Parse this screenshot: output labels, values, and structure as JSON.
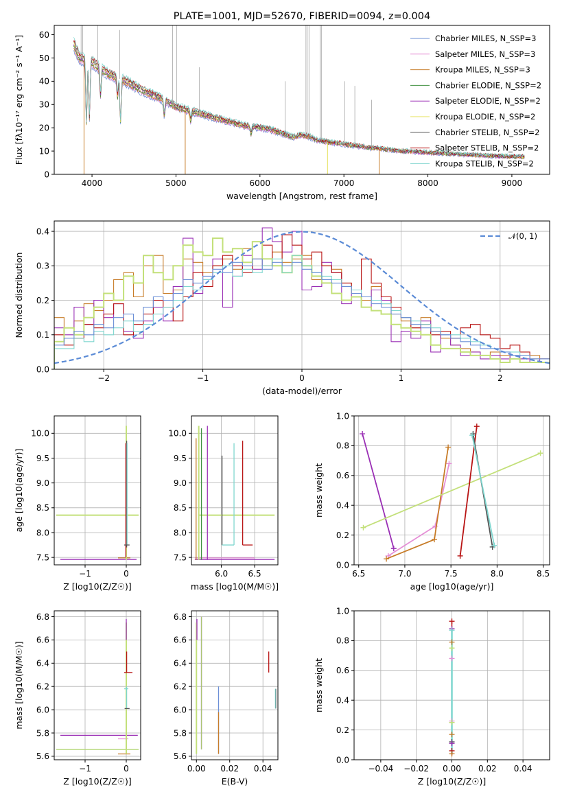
{
  "colors": {
    "c0": "#6b8fd6",
    "c1": "#e58fd6",
    "c2": "#c77c28",
    "c3": "#3f8f3f",
    "c4": "#9a2fb5",
    "c5": "#e6e05a",
    "c6": "#555555",
    "c7": "#b81414",
    "c8": "#7fd6cf",
    "gauss": "#5b8bd6",
    "hist_orange": "#e07b2b",
    "hist_lime": "#c3e07a"
  },
  "chart_data": [
    {
      "id": "spectrum",
      "type": "line",
      "title": "PLATE=1001, MJD=52670, FIBERID=0094, z=0.004",
      "xlabel": "wavelength [Angstrom, rest frame]",
      "ylabel": "Flux [fλ10⁻¹⁷ erg cm⁻² s⁻¹ A⁻¹]",
      "xlim": [
        3550,
        9450
      ],
      "ylim": [
        0,
        64
      ],
      "xticks": [
        "4000",
        "5000",
        "6000",
        "7000",
        "8000",
        "9000"
      ],
      "yticks": [
        "0",
        "10",
        "20",
        "30",
        "40",
        "50",
        "60"
      ],
      "continuum": {
        "x": [
          3780,
          3850,
          4000,
          4200,
          4400,
          4600,
          4800,
          5000,
          5200,
          5500,
          5800,
          6100,
          6400,
          6500,
          6600,
          6700,
          7000,
          7300,
          7700,
          8200,
          8700,
          9150
        ],
        "y": [
          56,
          50,
          48,
          43,
          40,
          36,
          33,
          29,
          27,
          24,
          21,
          19.5,
          16,
          17,
          16,
          14.5,
          13,
          11.5,
          10,
          9,
          8,
          7.5
        ]
      },
      "grid": false,
      "legend_position": "upper-right",
      "legend": [
        "Chabrier MILES, N_SSP=3",
        "Salpeter MILES, N_SSP=3",
        "Kroupa MILES, N_SSP=3",
        "Chabrier ELODIE, N_SSP=2",
        "Salpeter ELODIE, N_SSP=2",
        "Kroupa ELODIE, N_SSP=2",
        "Chabrier STELIB, N_SSP=2",
        "Salpeter STELIB, N_SSP=2",
        "Kroupa STELIB, N_SSP=2"
      ]
    },
    {
      "id": "residuals",
      "type": "line",
      "xlabel": "(data-model)/error",
      "ylabel": "Normed distribution",
      "xlim": [
        -2.5,
        2.5
      ],
      "ylim": [
        0,
        0.43
      ],
      "xticks": [
        "−2",
        "−1",
        "0",
        "1",
        "2"
      ],
      "yticks": [
        "0.0",
        "0.1",
        "0.2",
        "0.3",
        "0.4"
      ],
      "grid": true,
      "legend": [
        "𝒩(0, 1)"
      ],
      "hist_bins": [
        -2.5,
        2.5,
        50
      ],
      "series": [
        {
          "color": "c2",
          "values": [
            0.15,
            0.12,
            0.14,
            0.19,
            0.17,
            0.2,
            0.26,
            0.28,
            0.21,
            0.3,
            0.33,
            0.22,
            0.23,
            0.32,
            0.31,
            0.28,
            0.3,
            0.32,
            0.29,
            0.35,
            0.32,
            0.3,
            0.34,
            0.31,
            0.32,
            0.33,
            0.26,
            0.3,
            0.29,
            0.25,
            0.22,
            0.2,
            0.24,
            0.19,
            0.16,
            0.14,
            0.12,
            0.15,
            0.11,
            0.09,
            0.07,
            0.06,
            0.05,
            0.04,
            0.05,
            0.04,
            0.03,
            0.03,
            0.04,
            0.03
          ]
        },
        {
          "color": "c4",
          "values": [
            0.12,
            0.1,
            0.18,
            0.13,
            0.2,
            0.15,
            0.19,
            0.11,
            0.09,
            0.14,
            0.18,
            0.14,
            0.24,
            0.38,
            0.22,
            0.26,
            0.32,
            0.18,
            0.27,
            0.33,
            0.29,
            0.41,
            0.37,
            0.34,
            0.4,
            0.23,
            0.24,
            0.31,
            0.28,
            0.19,
            0.22,
            0.18,
            0.23,
            0.2,
            0.08,
            0.11,
            0.09,
            0.14,
            0.05,
            0.1,
            0.07,
            0.04,
            0.05,
            0.03,
            0.04,
            0.03,
            0.04,
            0.03,
            0.02,
            0.03
          ]
        },
        {
          "color": "c7",
          "values": [
            0.1,
            0.07,
            0.09,
            0.13,
            0.12,
            0.16,
            0.19,
            0.1,
            0.13,
            0.16,
            0.2,
            0.18,
            0.14,
            0.21,
            0.28,
            0.24,
            0.3,
            0.33,
            0.3,
            0.28,
            0.37,
            0.36,
            0.3,
            0.39,
            0.36,
            0.32,
            0.34,
            0.3,
            0.28,
            0.25,
            0.23,
            0.32,
            0.25,
            0.21,
            0.18,
            0.15,
            0.12,
            0.13,
            0.1,
            0.11,
            0.09,
            0.12,
            0.13,
            0.1,
            0.09,
            0.06,
            0.07,
            0.05,
            0.03,
            0.03
          ]
        },
        {
          "color": "hist_lime",
          "values": [
            0.08,
            0.12,
            0.1,
            0.15,
            0.18,
            0.22,
            0.2,
            0.27,
            0.25,
            0.33,
            0.28,
            0.26,
            0.3,
            0.36,
            0.34,
            0.33,
            0.38,
            0.34,
            0.35,
            0.31,
            0.37,
            0.32,
            0.3,
            0.28,
            0.33,
            0.3,
            0.27,
            0.25,
            0.22,
            0.2,
            0.21,
            0.18,
            0.17,
            0.16,
            0.13,
            0.12,
            0.11,
            0.1,
            0.07,
            0.06,
            0.06,
            0.05,
            0.04,
            0.04,
            0.03,
            0.02,
            0.03,
            0.02,
            0.02,
            0.02
          ]
        },
        {
          "color": "c8",
          "values": [
            0.06,
            0.06,
            0.09,
            0.08,
            0.11,
            0.1,
            0.12,
            0.14,
            0.11,
            0.13,
            0.16,
            0.18,
            0.2,
            0.24,
            0.23,
            0.26,
            0.28,
            0.3,
            0.27,
            0.29,
            0.28,
            0.3,
            0.32,
            0.28,
            0.33,
            0.3,
            0.28,
            0.27,
            0.26,
            0.24,
            0.23,
            0.21,
            0.2,
            0.19,
            0.17,
            0.15,
            0.14,
            0.13,
            0.12,
            0.1,
            0.1,
            0.09,
            0.08,
            0.07,
            0.06,
            0.05,
            0.05,
            0.04,
            0.03,
            0.03
          ]
        },
        {
          "color": "c0",
          "values": [
            0.07,
            0.09,
            0.11,
            0.1,
            0.13,
            0.12,
            0.15,
            0.16,
            0.14,
            0.18,
            0.21,
            0.2,
            0.22,
            0.26,
            0.25,
            0.27,
            0.29,
            0.28,
            0.31,
            0.3,
            0.32,
            0.29,
            0.31,
            0.3,
            0.31,
            0.29,
            0.28,
            0.26,
            0.25,
            0.24,
            0.22,
            0.21,
            0.19,
            0.18,
            0.16,
            0.15,
            0.13,
            0.12,
            0.11,
            0.1,
            0.09,
            0.08,
            0.07,
            0.06,
            0.06,
            0.05,
            0.04,
            0.04,
            0.03,
            0.03
          ]
        }
      ],
      "gaussian": {
        "mu": 0,
        "sigma": 1
      }
    },
    {
      "id": "age_vs_Z",
      "type": "scatter",
      "xlabel": "Z [log10(Z/Z☉)]",
      "ylabel": "age  [log10(age/yr)]",
      "xlim": [
        -1.75,
        0.35
      ],
      "ylim": [
        7.35,
        10.35
      ],
      "xticks": [
        "−1",
        "0"
      ],
      "yticks": [
        "7.5",
        "8.0",
        "8.5",
        "9.0",
        "9.5",
        "10.0"
      ],
      "grid": true
    },
    {
      "id": "age_vs_mass",
      "type": "scatter",
      "xlabel": "mass [log10(M/M☉)]",
      "ylabel": "",
      "xlim": [
        5.55,
        6.85
      ],
      "ylim": [
        7.35,
        10.35
      ],
      "xticks": [
        "6.0",
        "6.5"
      ],
      "yticks": [
        "7.5",
        "8.0",
        "8.5",
        "9.0",
        "9.5",
        "10.0"
      ],
      "grid": true
    },
    {
      "id": "weight_vs_age",
      "type": "line",
      "xlabel": "age  [log10(age/yr)]",
      "ylabel": "mass weight",
      "xlim": [
        6.45,
        8.57
      ],
      "ylim": [
        0,
        1
      ],
      "xticks": [
        "6.5",
        "7.0",
        "7.5",
        "8.0",
        "8.5"
      ],
      "yticks": [
        "0.0",
        "0.2",
        "0.4",
        "0.6",
        "0.8",
        "1.0"
      ],
      "grid": true,
      "series": [
        {
          "color": "c4",
          "x": [
            6.54,
            6.88
          ],
          "y": [
            0.88,
            0.11
          ]
        },
        {
          "color": "c1",
          "x": [
            6.82,
            7.33,
            7.48
          ],
          "y": [
            0.06,
            0.26,
            0.68
          ]
        },
        {
          "color": "c2",
          "x": [
            6.8,
            7.32,
            7.47
          ],
          "y": [
            0.04,
            0.17,
            0.79
          ]
        },
        {
          "color": "hist_lime",
          "x": [
            6.55,
            8.47
          ],
          "y": [
            0.25,
            0.75
          ]
        },
        {
          "color": "c7",
          "x": [
            7.6,
            7.78
          ],
          "y": [
            0.06,
            0.93
          ]
        },
        {
          "color": "c6",
          "x": [
            7.74,
            7.95
          ],
          "y": [
            0.88,
            0.12
          ]
        },
        {
          "color": "c8",
          "x": [
            7.73,
            7.97
          ],
          "y": [
            0.87,
            0.13
          ]
        }
      ]
    },
    {
      "id": "mass_vs_Z",
      "type": "scatter",
      "xlabel": "Z [log10(Z/Z☉)]",
      "ylabel": "mass [log10(M/M☉)]",
      "xlim": [
        -1.75,
        0.35
      ],
      "ylim": [
        5.57,
        6.85
      ],
      "xticks": [
        "−1",
        "0"
      ],
      "yticks": [
        "5.6",
        "5.8",
        "6.0",
        "6.2",
        "6.4",
        "6.6",
        "6.8"
      ],
      "grid": true
    },
    {
      "id": "mass_vs_EBV",
      "type": "scatter",
      "xlabel": "E(B-V)",
      "ylabel": "",
      "xlim": [
        -0.003,
        0.049
      ],
      "ylim": [
        5.57,
        6.85
      ],
      "xticks": [
        "0.00",
        "0.02",
        "0.04"
      ],
      "yticks": [
        "5.6",
        "5.8",
        "6.0",
        "6.2",
        "6.4",
        "6.6",
        "6.8"
      ],
      "grid": true
    },
    {
      "id": "weight_vs_Z",
      "type": "scatter",
      "xlabel": "Z [log10(Z/Z☉)]",
      "ylabel": "mass weight",
      "xlim": [
        -0.055,
        0.055
      ],
      "ylim": [
        0,
        1
      ],
      "xticks": [
        "−0.04",
        "−0.02",
        "0.00",
        "0.02",
        "0.04"
      ],
      "yticks": [
        "0.0",
        "0.2",
        "0.4",
        "0.6",
        "0.8",
        "1.0"
      ],
      "grid": true
    }
  ]
}
